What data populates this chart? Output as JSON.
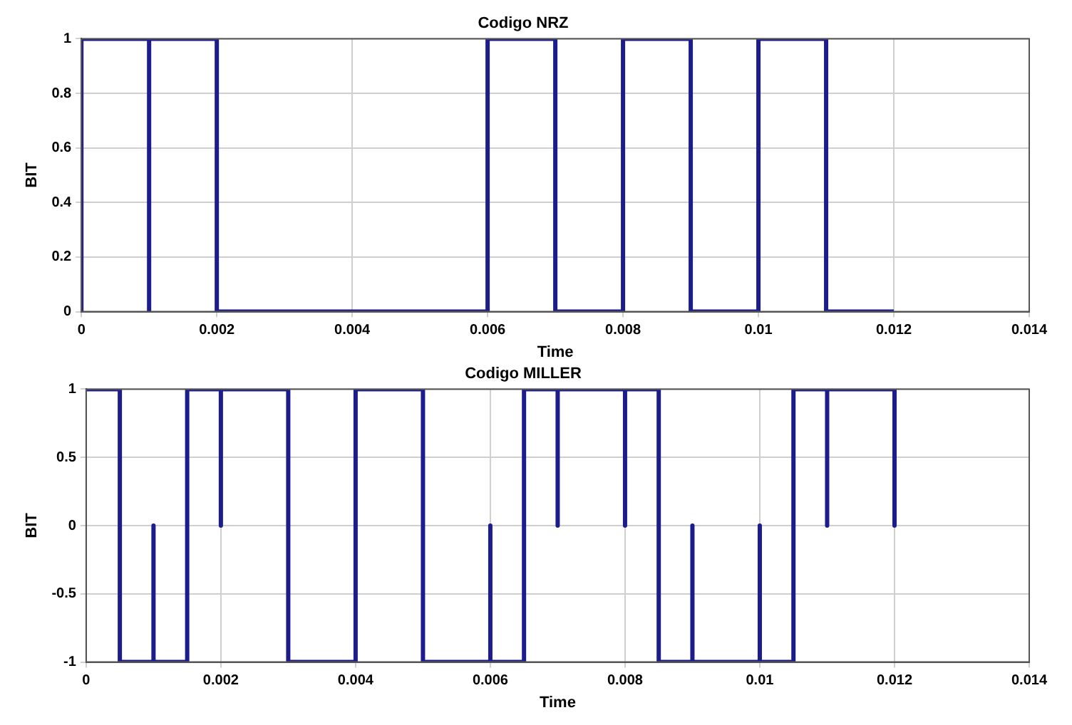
{
  "chart_data": [
    {
      "type": "line",
      "title": "Codigo NRZ",
      "xlabel": "Time",
      "ylabel": "BIT",
      "xlim": [
        0,
        0.014
      ],
      "xticks": [
        0,
        0.002,
        0.004,
        0.006,
        0.008,
        0.01,
        0.012,
        0.014
      ],
      "ylim": [
        0,
        1
      ],
      "yticks": [
        0,
        0.2,
        0.4,
        0.6,
        0.8,
        1
      ],
      "grid": true,
      "legend": false,
      "marker": "none",
      "line_style": "solid",
      "series": [
        {
          "color": "#1c1c8c",
          "x": [
            0,
            0,
            0.001,
            0.001,
            0.001,
            0.002,
            0.002,
            0.006,
            0.006,
            0.007,
            0.007,
            0.008,
            0.008,
            0.009,
            0.009,
            0.01,
            0.01,
            0.011,
            0.011,
            0.012
          ],
          "values": [
            0,
            1,
            1,
            0,
            1,
            1,
            0,
            0,
            1,
            1,
            0,
            0,
            1,
            1,
            0,
            0,
            1,
            1,
            0,
            0
          ]
        }
      ]
    },
    {
      "type": "line",
      "title": "Codigo MILLER",
      "xlabel": "Time",
      "ylabel": "BIT",
      "xlim": [
        0,
        0.014
      ],
      "xticks": [
        0,
        0.002,
        0.004,
        0.006,
        0.008,
        0.01,
        0.012,
        0.014
      ],
      "ylim": [
        -1,
        1
      ],
      "yticks": [
        -1,
        -0.5,
        0,
        0.5,
        1
      ],
      "grid": true,
      "legend": false,
      "marker": "none",
      "line_style": "solid",
      "series": [
        {
          "color": "#1c1c8c",
          "x": [
            0,
            0.0005,
            0.0005,
            0.001,
            0.001,
            0.001,
            0.0015,
            0.0015,
            0.002,
            0.002,
            0.002,
            0.003,
            0.003,
            0.004,
            0.004,
            0.005,
            0.005,
            0.006,
            0.006,
            0.006,
            0.0065,
            0.0065,
            0.007,
            0.007,
            0.007,
            0.008,
            0.008,
            0.008,
            0.0085,
            0.0085,
            0.009,
            0.009,
            0.009,
            0.01,
            0.01,
            0.01,
            0.0105,
            0.0105,
            0.011,
            0.011,
            0.011,
            0.012,
            0.012
          ],
          "values": [
            1,
            1,
            -1,
            -1,
            0,
            -1,
            -1,
            1,
            1,
            0,
            1,
            1,
            -1,
            -1,
            1,
            1,
            -1,
            -1,
            0,
            -1,
            -1,
            1,
            1,
            0,
            1,
            1,
            0,
            1,
            1,
            -1,
            -1,
            0,
            -1,
            -1,
            0,
            -1,
            -1,
            1,
            1,
            0,
            1,
            1,
            0
          ]
        }
      ]
    }
  ]
}
